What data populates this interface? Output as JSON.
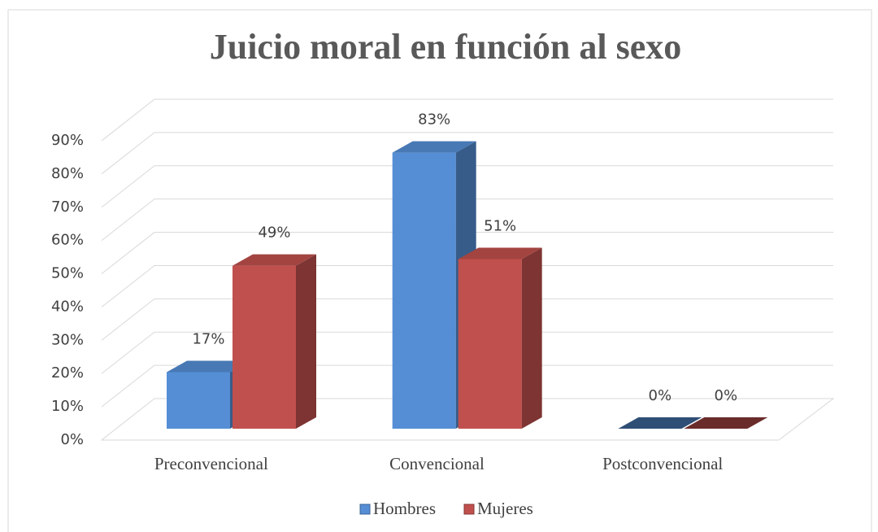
{
  "chart_data": {
    "type": "bar3d",
    "title": "Juicio moral en función al sexo",
    "categories": [
      "Preconvencional",
      "Convencional",
      "Postconvencional"
    ],
    "series": [
      {
        "name": "Hombres",
        "color": "#558ed5",
        "values": [
          17,
          83,
          0
        ],
        "value_labels": [
          "17%",
          "83%",
          "0%"
        ]
      },
      {
        "name": "Mujeres",
        "color": "#c0504d",
        "values": [
          49,
          51,
          0
        ],
        "value_labels": [
          "49%",
          "51%",
          "0%"
        ]
      }
    ],
    "ylim": [
      0,
      90
    ],
    "yticks": [
      {
        "value": 0,
        "label": "0%"
      },
      {
        "value": 10,
        "label": "10%"
      },
      {
        "value": 20,
        "label": "20%"
      },
      {
        "value": 30,
        "label": "30%"
      },
      {
        "value": 40,
        "label": "40%"
      },
      {
        "value": 50,
        "label": "50%"
      },
      {
        "value": 60,
        "label": "60%"
      },
      {
        "value": 70,
        "label": "70%"
      },
      {
        "value": 80,
        "label": "80%"
      },
      {
        "value": 90,
        "label": "90%"
      }
    ],
    "grid": true,
    "legend": "bottom"
  }
}
